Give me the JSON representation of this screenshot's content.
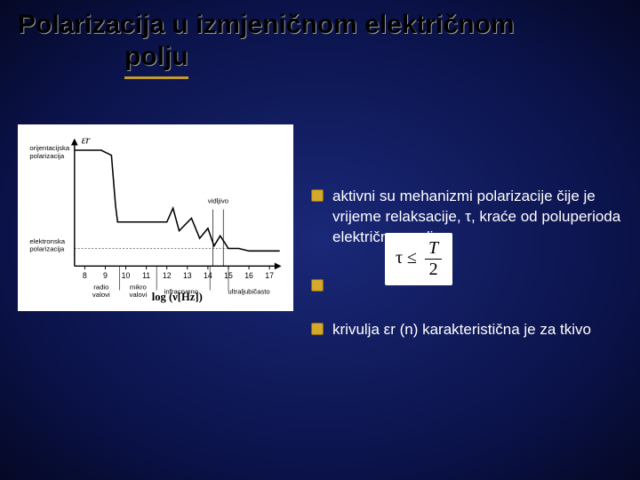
{
  "title_line1": "Polarizacija u izmjeničnom električnom",
  "title_line2": "polju",
  "bullets": [
    "aktivni su mehanizmi polarizacije čije je vrijeme relaksacije, τ, kraće od poluperioda električnog polja",
    "",
    "krivulja εr (n) karakteristična je za tkivo"
  ],
  "formula": {
    "lhs": "τ ≤",
    "num": "T",
    "den": "2"
  },
  "chart": {
    "type": "line-step",
    "background": "#ffffff",
    "axis_color": "#000000",
    "line_color": "#000000",
    "y_label": "εr",
    "x_label": "log (ν[Hz])",
    "x_ticks": [
      8,
      9,
      10,
      11,
      12,
      13,
      14,
      15,
      16,
      17
    ],
    "x_range": [
      7.5,
      17.5
    ],
    "y_range": [
      0,
      100
    ],
    "band_labels": [
      {
        "text": "orijentacijska polarizacija",
        "x": 7.6,
        "side": "left"
      },
      {
        "text": "elektronska polarizacija",
        "x": 7.6,
        "side": "left-low"
      },
      {
        "text": "radio valovi",
        "x": 8.8
      },
      {
        "text": "mikro-valovi",
        "x": 10.6
      },
      {
        "text": "infracrveno",
        "x": 12.7
      },
      {
        "text": "vidljivo",
        "x": 14.5,
        "high": true
      },
      {
        "text": "ultraljubičasto",
        "x": 16.0
      }
    ],
    "curve": [
      [
        7.5,
        92
      ],
      [
        8.8,
        92
      ],
      [
        9.3,
        88
      ],
      [
        9.5,
        48
      ],
      [
        9.6,
        35
      ],
      [
        10.0,
        35
      ],
      [
        11.0,
        35
      ],
      [
        12.0,
        35
      ],
      [
        12.3,
        46
      ],
      [
        12.6,
        28
      ],
      [
        13.2,
        38
      ],
      [
        13.6,
        22
      ],
      [
        14.0,
        30
      ],
      [
        14.3,
        16
      ],
      [
        14.6,
        24
      ],
      [
        15.0,
        14
      ],
      [
        15.5,
        14
      ],
      [
        16.0,
        12
      ],
      [
        17.0,
        12
      ],
      [
        17.5,
        12
      ]
    ],
    "font_size_ticks": 9,
    "font_size_labels": 8,
    "font_size_axis_label": 13
  },
  "colors": {
    "title_text": "#000000",
    "title_shadow": "#999999",
    "underline": "#c49a2a",
    "body_text": "#ffffff",
    "bg_outer": "#050825",
    "bg_inner": "#1a2878",
    "bullet": "#d4a82a",
    "bullet_border": "#8a6a10"
  }
}
